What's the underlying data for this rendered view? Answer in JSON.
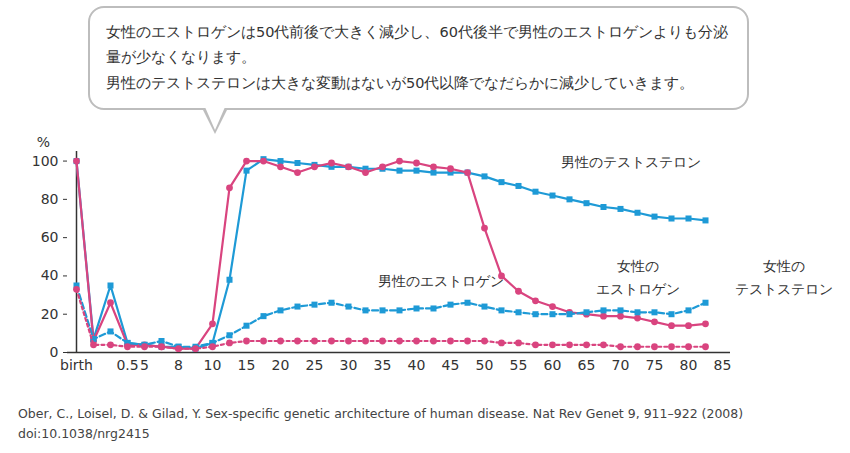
{
  "chart_data": {
    "type": "line",
    "annotations": [
      "女性のエストロゲンは50代前後で大きく減少し、60代後半で男性のエストロゲンよりも分泌量が少なくなります。",
      "男性のテストステロンは大きな変動はないが50代以降でなだらかに減少していきます。"
    ],
    "y_label": "%",
    "caption": [
      "Ober, C., Loisel, D. & Gilad, Y. Sex-specific genetic architecture of human disease. Nat Rev Genet 9, 911–922 (2008)",
      "doi:10.1038/nrg2415"
    ],
    "categories": [
      "birth",
      null,
      null,
      "0.5",
      "5",
      null,
      "8",
      null,
      "10",
      null,
      "15",
      null,
      "20",
      null,
      "25",
      null,
      "30",
      null,
      "35",
      null,
      "40",
      null,
      "45",
      null,
      "50",
      null,
      "55",
      null,
      "60",
      null,
      "65",
      null,
      "70",
      null,
      "75",
      null,
      "80",
      null,
      "85"
    ],
    "series": [
      {
        "name": "男性のテストステロン",
        "color": "#1e9ad6",
        "line_style": "solid",
        "marker": "square",
        "values": [
          100,
          7,
          35,
          5,
          4,
          3,
          3,
          2,
          5,
          38,
          95,
          101,
          100,
          99,
          98,
          97,
          97,
          96,
          96,
          95,
          95,
          94,
          94,
          94,
          92,
          89,
          87,
          84,
          82,
          80,
          78,
          76,
          75,
          73,
          71,
          70,
          70,
          69,
          null
        ]
      },
      {
        "name": "女性の\nエストロゲン",
        "color": "#d9447f",
        "line_style": "solid",
        "marker": "circle",
        "values": [
          100,
          6,
          26,
          4,
          4,
          3,
          2,
          2,
          15,
          86,
          100,
          100,
          97,
          94,
          97,
          99,
          97,
          94,
          97,
          100,
          99,
          97,
          96,
          94,
          65,
          40,
          32,
          27,
          24,
          21,
          20,
          19,
          19,
          18,
          16,
          14,
          14,
          15,
          null
        ]
      },
      {
        "name": "男性のエストロゲン",
        "color": "#1e9ad6",
        "line_style": "dashed",
        "marker": "square",
        "values": [
          35,
          7,
          11,
          5,
          4,
          6,
          3,
          3,
          5,
          9,
          14,
          19,
          22,
          24,
          25,
          26,
          24,
          22,
          22,
          22,
          23,
          23,
          25,
          26,
          24,
          22,
          21,
          20,
          20,
          20,
          21,
          22,
          22,
          21,
          21,
          20,
          22,
          26,
          null
        ]
      },
      {
        "name": "女性の\nテストステロン",
        "color": "#d9447f",
        "line_style": "dotted",
        "marker": "circle",
        "values": [
          33,
          4,
          4,
          3,
          3,
          3,
          2,
          2,
          3,
          5,
          6,
          6,
          6,
          6,
          6,
          6,
          6,
          6,
          6,
          6,
          6,
          6,
          6,
          6,
          6,
          5,
          5,
          4,
          4,
          4,
          4,
          4,
          3,
          3,
          3,
          3,
          3,
          3,
          null
        ]
      }
    ],
    "ylim": [
      0,
      105
    ],
    "yticks": [
      0,
      20,
      40,
      60,
      80,
      100
    ],
    "grid": false
  }
}
